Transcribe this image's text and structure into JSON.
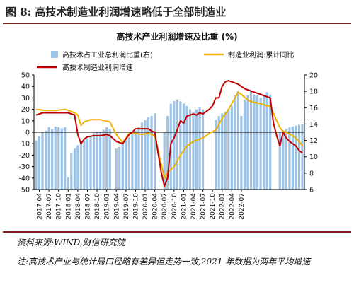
{
  "figure": {
    "title": "图 8:  高技术制造业利润增速略低于全部制造业",
    "source": "资料来源:WIND,财信研究院",
    "note": "注:高技术产业与统计局口径略有差异但走势一致,2021 年数据为两年平均增速"
  },
  "colors": {
    "accent": "#8a1b1b",
    "bars": "#9dc3e6",
    "line_manufacturing": "#f0b400",
    "line_hightech": "#c00000"
  },
  "chart_data": {
    "type": "bar",
    "title": "高技术产业利润增速及比重 (%)",
    "legend": [
      "高技术占工业总利润比重(右)",
      "制造业利润:累计同比",
      "高技术制造业利润增速"
    ],
    "legend_placement": "top",
    "x_tick_labels": [
      "2017-04",
      "2017-07",
      "2017-10",
      "2018-01",
      "2018-04",
      "2018-07",
      "2018-10",
      "2019-01",
      "2019-04",
      "2019-07",
      "2019-10",
      "2020-01",
      "2020-04",
      "2020-07",
      "2020-10",
      "2021-01",
      "2021-04",
      "2021-07",
      "2021-10",
      "2022-01",
      "2022-04",
      "2022-07"
    ],
    "left_axis": {
      "ylim": [
        -50,
        50
      ],
      "ticks": [
        50,
        40,
        30,
        20,
        10,
        0,
        -10,
        -20,
        -30,
        -40,
        -50
      ]
    },
    "right_axis": {
      "ylim": [
        6,
        20
      ],
      "ticks": [
        20,
        18,
        16,
        14,
        12,
        10,
        8,
        6
      ]
    },
    "grid": false,
    "series": [
      {
        "name": "高技术占工业总利润比重(右)",
        "axis": "right",
        "type": "bar",
        "values": [
          [
            0,
            12.0
          ],
          [
            1,
            12.5
          ],
          [
            2,
            13.0
          ],
          [
            3,
            13.2
          ],
          [
            4,
            13.6
          ],
          [
            5,
            13.4
          ],
          [
            6,
            13.7
          ],
          [
            7,
            13.6
          ],
          [
            8,
            13.5
          ],
          [
            9,
            13.6
          ],
          [
            10,
            7.5
          ],
          [
            11,
            10.5
          ],
          [
            12,
            11.0
          ],
          [
            13,
            11.4
          ],
          [
            14,
            11.8
          ],
          [
            15,
            12.0
          ],
          [
            16,
            12.2
          ],
          [
            17,
            12.5
          ],
          [
            18,
            12.9
          ],
          [
            19,
            13.0
          ],
          [
            20,
            13.0
          ],
          [
            21,
            13.3
          ],
          [
            22,
            13.6
          ],
          [
            23,
            13.4
          ],
          [
            25,
            11.0
          ],
          [
            26,
            11.2
          ],
          [
            27,
            11.6
          ],
          [
            28,
            12.0
          ],
          [
            29,
            12.4
          ],
          [
            30,
            12.8
          ],
          [
            31,
            13.2
          ],
          [
            32,
            13.6
          ],
          [
            33,
            14.2
          ],
          [
            34,
            14.5
          ],
          [
            35,
            14.8
          ],
          [
            36,
            15.0
          ],
          [
            37,
            15.3
          ],
          [
            40,
            13.0
          ],
          [
            41,
            15.0
          ],
          [
            42,
            16.5
          ],
          [
            43,
            16.8
          ],
          [
            44,
            17.0
          ],
          [
            45,
            16.8
          ],
          [
            46,
            16.5
          ],
          [
            47,
            16.2
          ],
          [
            48,
            15.8
          ],
          [
            49,
            15.5
          ],
          [
            50,
            15.8
          ],
          [
            51,
            16.0
          ],
          [
            52,
            15.8
          ],
          [
            56,
            14.5
          ],
          [
            57,
            15.0
          ],
          [
            58,
            15.3
          ],
          [
            59,
            15.5
          ],
          [
            60,
            15.8
          ],
          [
            61,
            16.2
          ],
          [
            62,
            17.5
          ],
          [
            63,
            18.0
          ],
          [
            64,
            15.0
          ],
          [
            65,
            17.0
          ],
          [
            66,
            17.5
          ],
          [
            67,
            18.0
          ],
          [
            68,
            17.6
          ],
          [
            69,
            17.5
          ],
          [
            70,
            17.2
          ],
          [
            71,
            17.6
          ],
          [
            72,
            17.9
          ],
          [
            73,
            17.6
          ],
          [
            76,
            13.0
          ],
          [
            77,
            13.2
          ],
          [
            78,
            13.4
          ],
          [
            79,
            13.6
          ],
          [
            80,
            13.7
          ],
          [
            81,
            13.8
          ],
          [
            82,
            13.9
          ],
          [
            83,
            14.0
          ]
        ]
      },
      {
        "name": "制造业利润:累计同比",
        "axis": "left",
        "type": "line",
        "values": [
          [
            0,
            20
          ],
          [
            3,
            19
          ],
          [
            6,
            19
          ],
          [
            9,
            20
          ],
          [
            12,
            17
          ],
          [
            13,
            15
          ],
          [
            14,
            6
          ],
          [
            15,
            9
          ],
          [
            17,
            11
          ],
          [
            20,
            11
          ],
          [
            23,
            9
          ],
          [
            25,
            -2
          ],
          [
            27,
            -9
          ],
          [
            29,
            -1
          ],
          [
            31,
            -1
          ],
          [
            33,
            -2
          ],
          [
            35,
            -1
          ],
          [
            37,
            -3
          ],
          [
            40,
            -40
          ],
          [
            41,
            -35
          ],
          [
            43,
            -30
          ],
          [
            45,
            -20
          ],
          [
            47,
            -12
          ],
          [
            49,
            -8
          ],
          [
            52,
            -5
          ],
          [
            54,
            -1
          ],
          [
            56,
            2
          ],
          [
            58,
            12
          ],
          [
            60,
            20
          ],
          [
            62,
            30
          ],
          [
            63,
            35
          ],
          [
            64,
            33
          ],
          [
            66,
            28
          ],
          [
            68,
            26
          ],
          [
            70,
            25
          ],
          [
            72,
            23
          ],
          [
            73,
            23
          ],
          [
            75,
            10
          ],
          [
            76,
            4
          ],
          [
            77,
            1
          ],
          [
            78,
            0
          ],
          [
            80,
            -3
          ],
          [
            82,
            -8
          ],
          [
            83,
            -12
          ]
        ]
      },
      {
        "name": "高技术制造业利润增速",
        "axis": "left",
        "type": "line",
        "values": [
          [
            0,
            15
          ],
          [
            2,
            17
          ],
          [
            4,
            17
          ],
          [
            6,
            17
          ],
          [
            8,
            17
          ],
          [
            10,
            17
          ],
          [
            12,
            15
          ],
          [
            13,
            -2
          ],
          [
            14,
            -10
          ],
          [
            15,
            -6
          ],
          [
            16,
            -4
          ],
          [
            18,
            -3
          ],
          [
            20,
            -3
          ],
          [
            22,
            -2
          ],
          [
            23,
            -3
          ],
          [
            25,
            -8
          ],
          [
            27,
            -10
          ],
          [
            29,
            -2
          ],
          [
            30,
            0
          ],
          [
            31,
            3
          ],
          [
            33,
            3
          ],
          [
            35,
            3
          ],
          [
            36,
            1
          ],
          [
            37,
            0
          ],
          [
            39,
            -35
          ],
          [
            40,
            -47
          ],
          [
            41,
            -40
          ],
          [
            42,
            -10
          ],
          [
            43,
            -5
          ],
          [
            44,
            2
          ],
          [
            45,
            10
          ],
          [
            46,
            8
          ],
          [
            47,
            14
          ],
          [
            48,
            15
          ],
          [
            49,
            16
          ],
          [
            50,
            15
          ],
          [
            51,
            17
          ],
          [
            52,
            16
          ],
          [
            53,
            18
          ],
          [
            54,
            20
          ],
          [
            55,
            23
          ],
          [
            56,
            30
          ],
          [
            57,
            30
          ],
          [
            58,
            40
          ],
          [
            59,
            44
          ],
          [
            60,
            45
          ],
          [
            61,
            44
          ],
          [
            62,
            43
          ],
          [
            63,
            42
          ],
          [
            64,
            40
          ],
          [
            65,
            38
          ],
          [
            66,
            37
          ],
          [
            67,
            36
          ],
          [
            68,
            35
          ],
          [
            69,
            34
          ],
          [
            70,
            33
          ],
          [
            71,
            32
          ],
          [
            72,
            31
          ],
          [
            73,
            30
          ],
          [
            74,
            8
          ],
          [
            75,
            -3
          ],
          [
            76,
            -12
          ],
          [
            77,
            0
          ],
          [
            78,
            -5
          ],
          [
            79,
            -8
          ],
          [
            80,
            -10
          ],
          [
            81,
            -12
          ],
          [
            82,
            -16
          ],
          [
            83,
            -18
          ]
        ]
      }
    ]
  }
}
